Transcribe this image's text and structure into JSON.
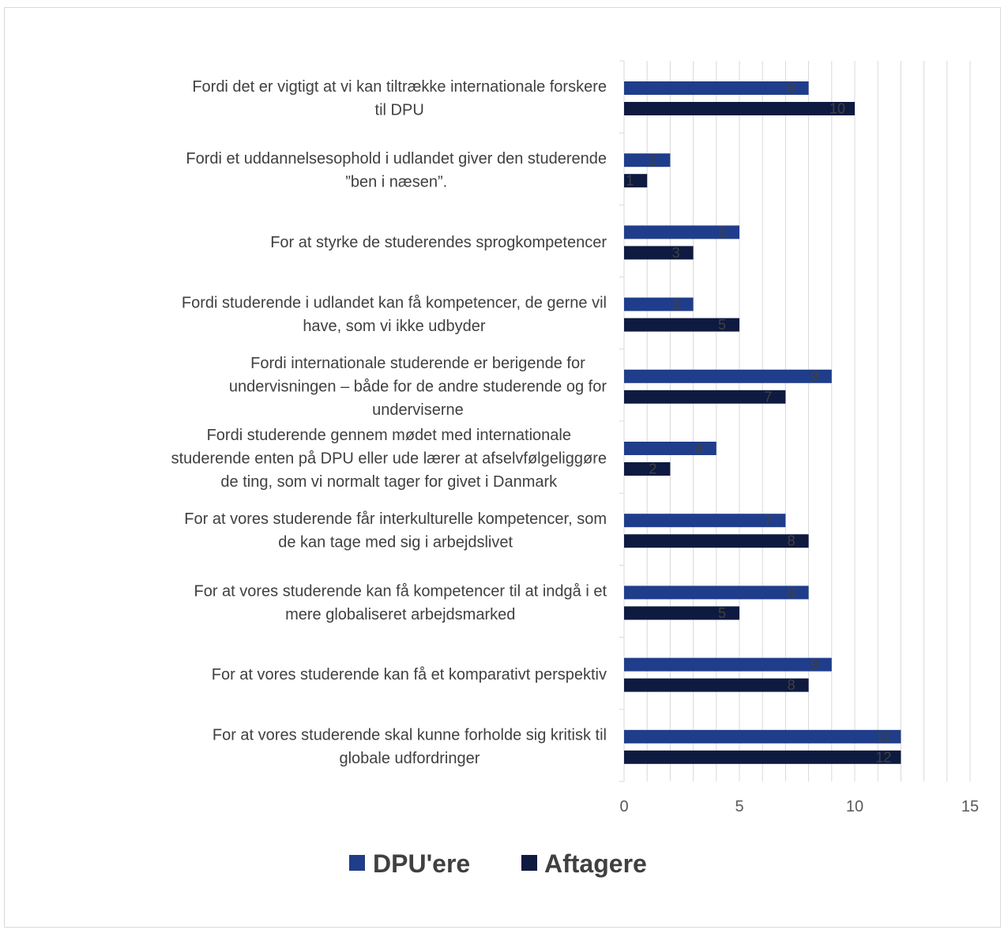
{
  "chart_data": {
    "type": "bar",
    "orientation": "horizontal",
    "categories": [
      [
        "Fordi det er vigtigt at vi kan tiltrække internationale forskere",
        "til DPU"
      ],
      [
        "Fordi et uddannelsesophold i udlandet giver den studerende",
        "”ben i næsen”."
      ],
      [
        "For at styrke de studerendes sprogkompetencer"
      ],
      [
        "Fordi studerende i udlandet kan få kompetencer, de gerne vil",
        "have, som vi ikke udbyder"
      ],
      [
        "Fordi internationale studerende er berigende for",
        "undervisningen – både for de andre studerende og for",
        "underviserne"
      ],
      [
        "Fordi studerende gennem mødet med internationale",
        "studerende enten på DPU eller ude lærer at afselvfølgeliggøre",
        "de ting, som vi normalt tager for givet i Danmark"
      ],
      [
        "For at vores studerende får interkulturelle kompetencer, som",
        "de kan tage med sig i arbejdslivet"
      ],
      [
        "For at vores studerende kan få kompetencer til at indgå i et",
        "mere globaliseret arbejdsmarked"
      ],
      [
        "For at vores studerende kan få et komparativt perspektiv"
      ],
      [
        "For at vores studerende skal kunne forholde sig kritisk til",
        "globale udfordringer"
      ]
    ],
    "series": [
      {
        "name": "DPU'ere",
        "color": "#1f3d8a",
        "values": [
          8,
          2,
          5,
          3,
          9,
          4,
          7,
          8,
          9,
          12
        ]
      },
      {
        "name": "Aftagere",
        "color": "#0e1a40",
        "values": [
          10,
          1,
          3,
          5,
          7,
          2,
          8,
          5,
          8,
          12
        ]
      }
    ],
    "xlim": [
      0,
      15
    ],
    "xticks": [
      0,
      5,
      10,
      15
    ],
    "grid": true,
    "legend_position": "bottom",
    "data_labels": true
  }
}
